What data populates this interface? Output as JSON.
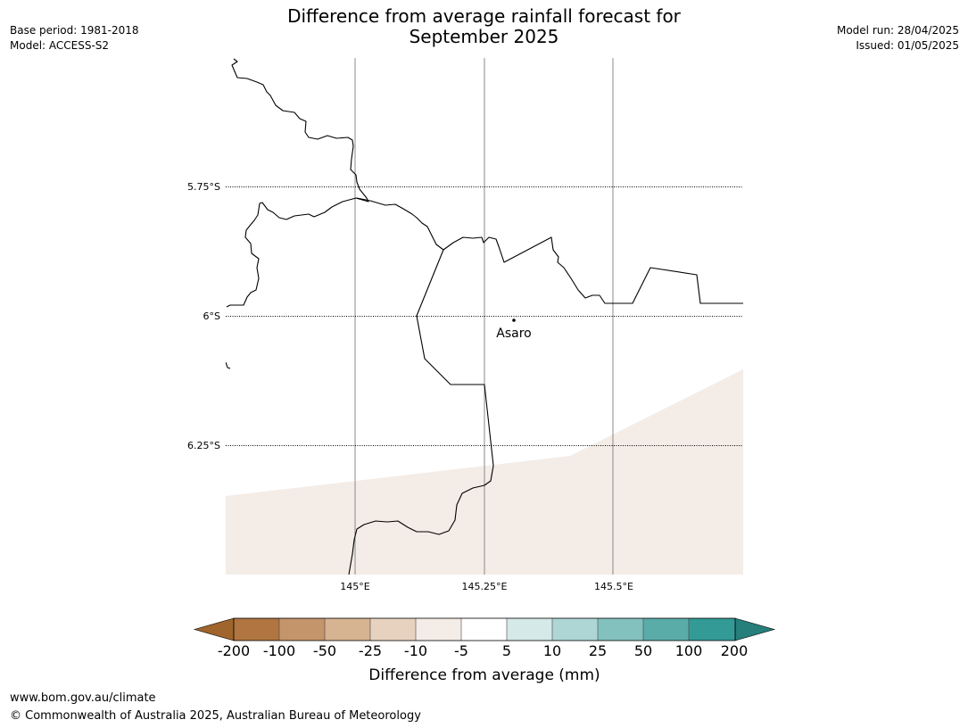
{
  "header": {
    "base_period": "Base period: 1981-2018",
    "model": "Model: ACCESS-S2",
    "model_run": "Model run: 28/04/2025",
    "issued": "Issued: 01/05/2025",
    "title_line1": "Difference from average rainfall forecast for",
    "title_line2": "September 2025"
  },
  "map": {
    "latitude_labels": [
      "5.75°S",
      "6°S",
      "6.25°S"
    ],
    "longitude_labels": [
      "145°E",
      "145.25°E",
      "145.5°E"
    ],
    "places": [
      {
        "name": "Asaro"
      }
    ],
    "shaded_category": "-10 to -5",
    "shade_color": "#f4ece6",
    "border_color": "#000000"
  },
  "colorbar": {
    "title": "Difference from average (mm)",
    "ticks": [
      "-200",
      "-100",
      "-50",
      "-25",
      "-10",
      "-5",
      "5",
      "10",
      "25",
      "50",
      "100",
      "200"
    ],
    "colors": [
      "#a0652c",
      "#b07540",
      "#c4956b",
      "#d6b391",
      "#e7d2c0",
      "#f4ece6",
      "#ffffff",
      "#d4e9e8",
      "#aed6d5",
      "#83c1be",
      "#5aaca9",
      "#339a96",
      "#267f7a"
    ]
  },
  "footer": {
    "url": "www.bom.gov.au/climate",
    "copyright": "© Commonwealth of Australia 2025, Australian Bureau of Meteorology"
  }
}
